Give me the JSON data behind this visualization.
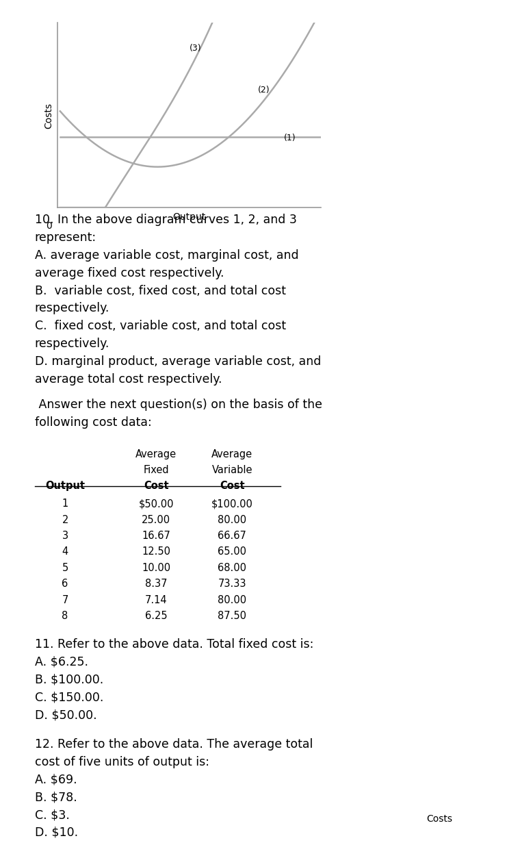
{
  "bg_color": "#ffffff",
  "chart_color": "#aaaaaa",
  "text_color": "#000000",
  "purple_bar_color": "#3d0060",
  "xlabel": "Output",
  "ylabel": "Costs",
  "table_data": [
    [
      1,
      "$50.00",
      "$100.00"
    ],
    [
      2,
      "25.00",
      "80.00"
    ],
    [
      3,
      "16.67",
      "66.67"
    ],
    [
      4,
      "12.50",
      "65.00"
    ],
    [
      5,
      "10.00",
      "68.00"
    ],
    [
      6,
      "8.37",
      "73.33"
    ],
    [
      7,
      "7.14",
      "80.00"
    ],
    [
      8,
      "6.25",
      "87.50"
    ]
  ],
  "q10_lines": [
    "10. In the above diagram curves 1, 2, and 3",
    "represent:",
    "A. average variable cost, marginal cost, and",
    "average fixed cost respectively.",
    "B.  variable cost, fixed cost, and total cost",
    "respectively.",
    "C.  fixed cost, variable cost, and total cost",
    "respectively.",
    "D. marginal product, average variable cost, and",
    "average total cost respectively."
  ],
  "intro_lines": [
    " Answer the next question(s) on the basis of the",
    "following cost data:"
  ],
  "q11_lines": [
    "11. Refer to the above data. Total fixed cost is:",
    "A. $6.25.",
    "B. $100.00.",
    "C. $150.00.",
    "D. $50.00."
  ],
  "q12_lines": [
    "12. Refer to the above data. The average total",
    "cost of five units of output is:",
    "A. $69.",
    "B. $78.",
    "C. $3.",
    "D. $10."
  ],
  "footer": "Costs"
}
